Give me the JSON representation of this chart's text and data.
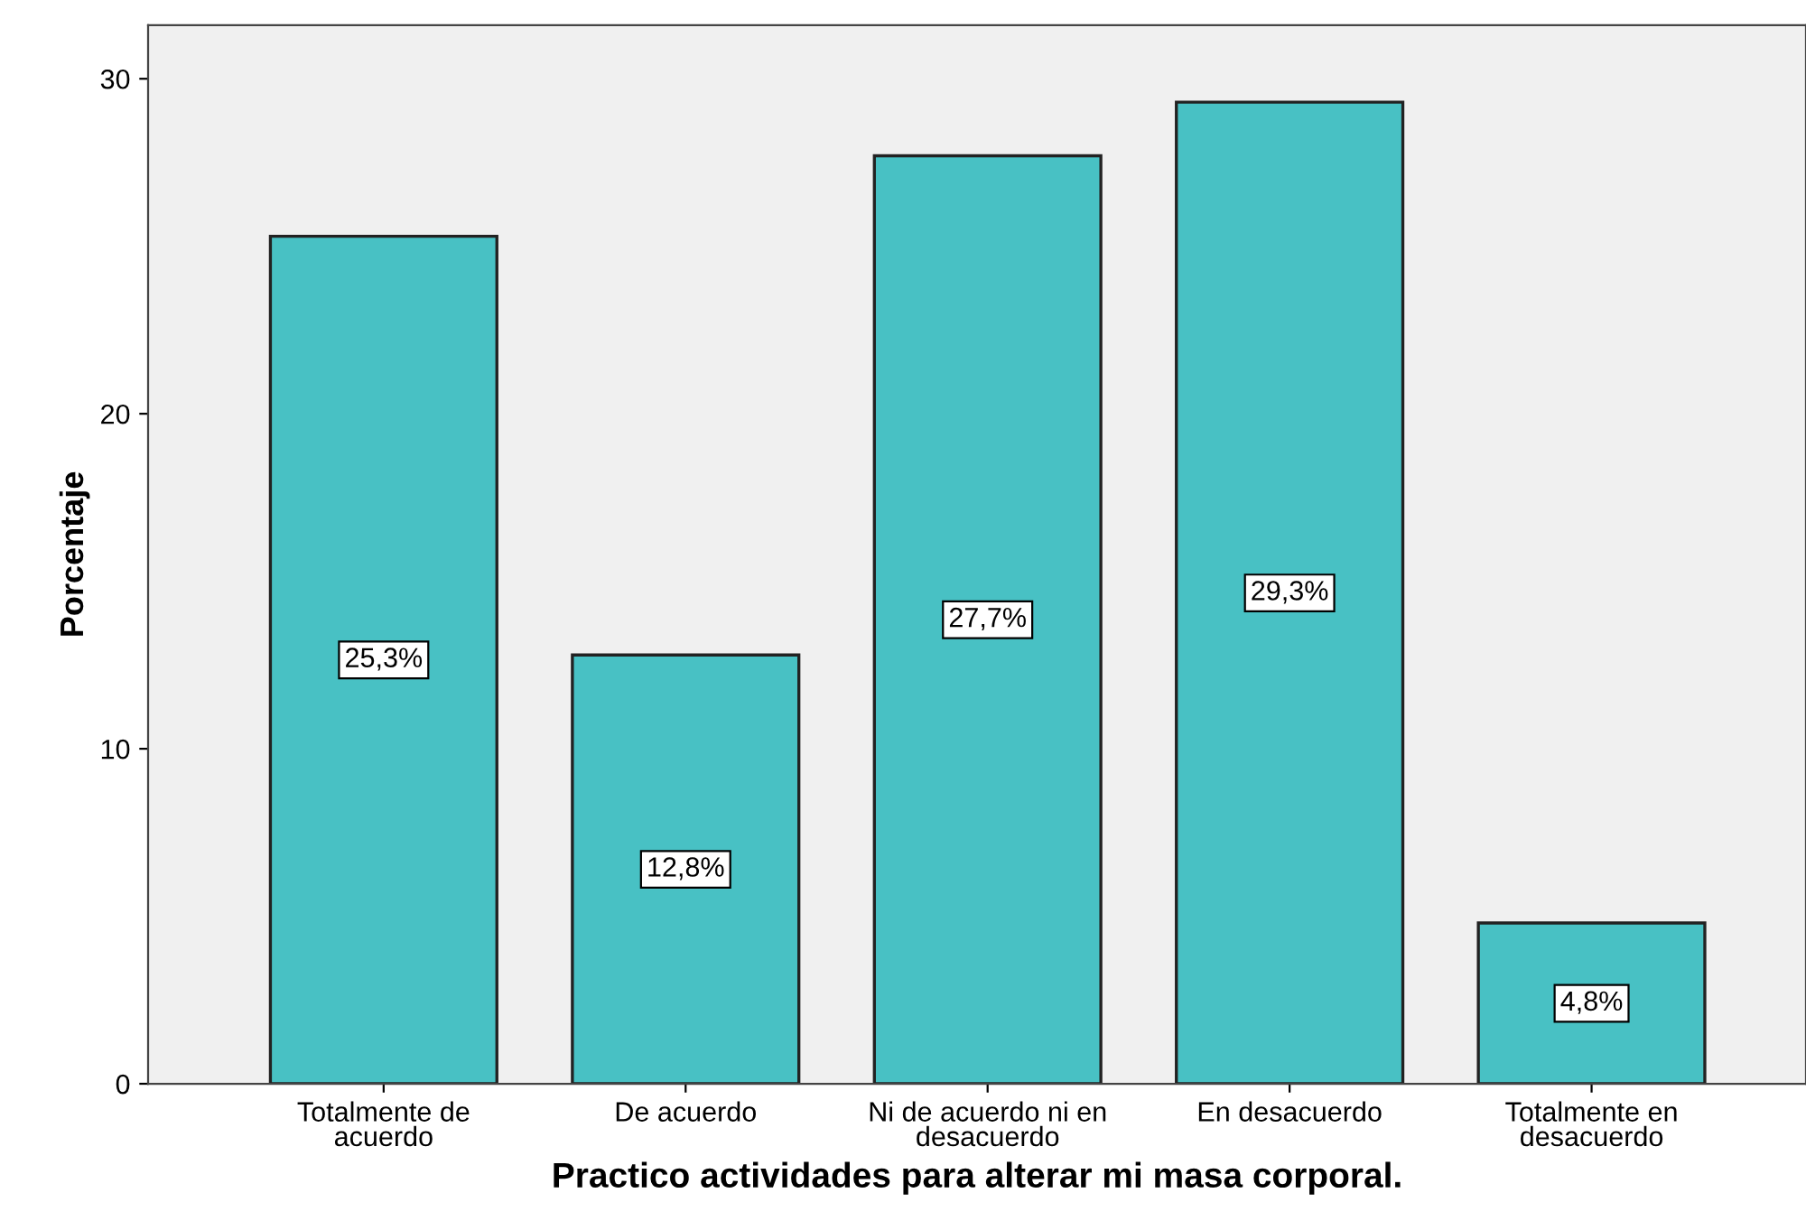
{
  "chart_data": {
    "type": "bar",
    "xlabel": "Practico actividades para alterar mi masa corporal.",
    "ylabel": "Porcentaje",
    "categories": [
      "Totalmente de\nacuerdo",
      "De acuerdo",
      "Ni de acuerdo ni en\ndesacuerdo",
      "En desacuerdo",
      "Totalmente en\ndesacuerdo"
    ],
    "values": [
      25.3,
      12.8,
      27.7,
      29.3,
      4.8
    ],
    "value_labels": [
      "25,3%",
      "12,8%",
      "27,7%",
      "29,3%",
      "4,8%"
    ],
    "color": "#48c1c4",
    "ylim": [
      0,
      31.6
    ],
    "yticks": [
      0,
      10,
      20,
      30
    ],
    "grid": false,
    "legend": false
  }
}
